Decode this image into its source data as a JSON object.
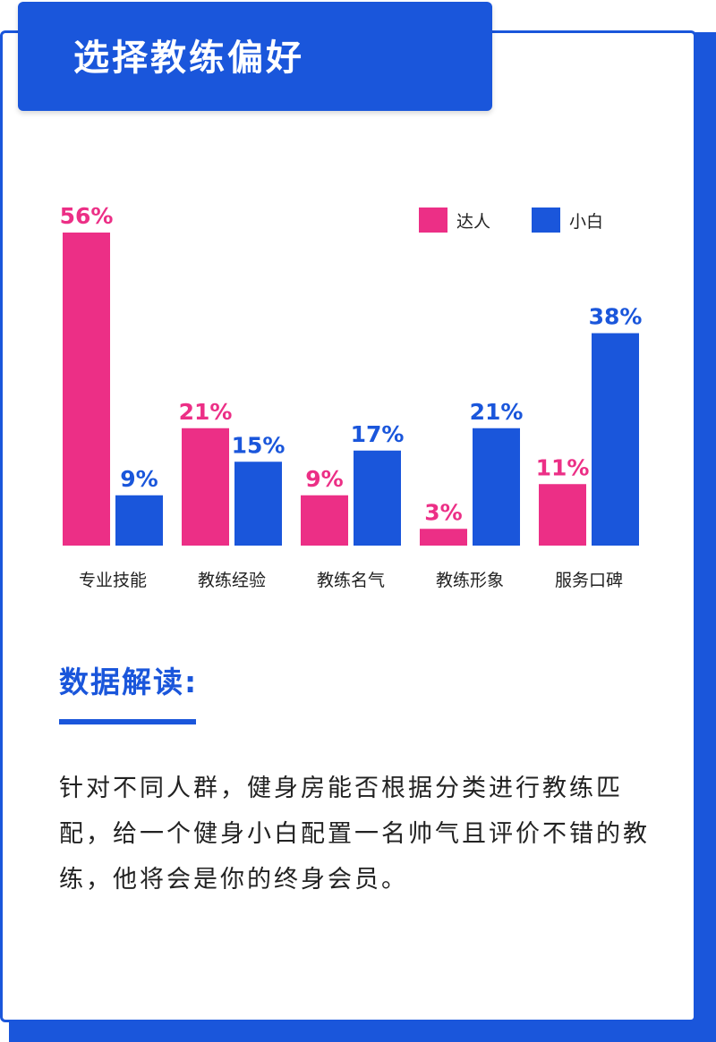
{
  "header": {
    "title": "选择教练偏好"
  },
  "colors": {
    "da_ren": "#ec2f86",
    "xiao_bai": "#1a56db",
    "brand_blue": "#1a56db"
  },
  "chart_data": {
    "type": "bar",
    "categories": [
      "专业技能",
      "教练经验",
      "教练名气",
      "教练形象",
      "服务口碑"
    ],
    "series": [
      {
        "name": "达人",
        "values": [
          56,
          21,
          9,
          3,
          11
        ],
        "labels": [
          "56%",
          "21%",
          "9%",
          "3%",
          "11%"
        ],
        "color": "#ec2f86"
      },
      {
        "name": "小白",
        "values": [
          9,
          15,
          17,
          21,
          38
        ],
        "labels": [
          "9%",
          "15%",
          "17%",
          "21%",
          "38%"
        ],
        "color": "#1a56db"
      }
    ],
    "unit": "%",
    "ylim": [
      0,
      56
    ],
    "legend": "top-right",
    "grid": false
  },
  "analysis": {
    "heading": "数据解读:",
    "text": "针对不同人群，健身房能否根据分类进行教练匹配，给一个健身小白配置一名帅气且评价不错的教练，他将会是你的终身会员。"
  }
}
